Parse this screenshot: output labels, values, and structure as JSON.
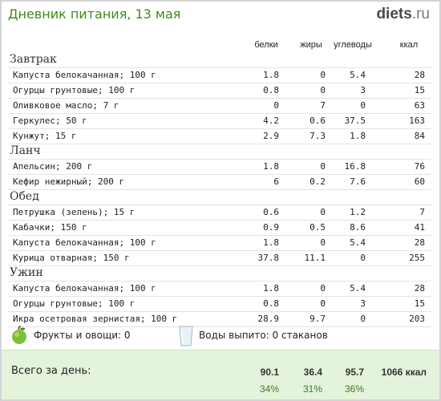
{
  "header": {
    "title": "Дневник питания, 13 мая",
    "logo_brand": "diets",
    "logo_tld": ".ru"
  },
  "columns": {
    "protein": "белки",
    "fat": "жиры",
    "carbs": "углеводы",
    "kcal": "ккал"
  },
  "sections": [
    {
      "title": "Завтрак",
      "rows": [
        {
          "name": "Капуста белокачанная; 100 г",
          "protein": "1.8",
          "fat": "0",
          "carbs": "5.4",
          "kcal": "28"
        },
        {
          "name": "Огурцы грунтовые; 100 г",
          "protein": "0.8",
          "fat": "0",
          "carbs": "3",
          "kcal": "15"
        },
        {
          "name": "Оливковое масло; 7 г",
          "protein": "0",
          "fat": "7",
          "carbs": "0",
          "kcal": "63"
        },
        {
          "name": "Геркулес; 50 г",
          "protein": "4.2",
          "fat": "0.6",
          "carbs": "37.5",
          "kcal": "163"
        },
        {
          "name": "Кунжут; 15 г",
          "protein": "2.9",
          "fat": "7.3",
          "carbs": "1.8",
          "kcal": "84"
        }
      ]
    },
    {
      "title": "Ланч",
      "rows": [
        {
          "name": "Апельсин; 200 г",
          "protein": "1.8",
          "fat": "0",
          "carbs": "16.8",
          "kcal": "76"
        },
        {
          "name": "Кефир нежирный; 200 г",
          "protein": "6",
          "fat": "0.2",
          "carbs": "7.6",
          "kcal": "60"
        }
      ]
    },
    {
      "title": "Обед",
      "rows": [
        {
          "name": "Петрушка (зелень); 15 г",
          "protein": "0.6",
          "fat": "0",
          "carbs": "1.2",
          "kcal": "7"
        },
        {
          "name": "Кабачки; 150 г",
          "protein": "0.9",
          "fat": "0.5",
          "carbs": "8.6",
          "kcal": "41"
        },
        {
          "name": "Капуста белокачанная; 100 г",
          "protein": "1.8",
          "fat": "0",
          "carbs": "5.4",
          "kcal": "28"
        },
        {
          "name": "Курица отварная; 150 г",
          "protein": "37.8",
          "fat": "11.1",
          "carbs": "0",
          "kcal": "255"
        }
      ]
    },
    {
      "title": "Ужин",
      "rows": [
        {
          "name": "Капуста белокачанная; 100 г",
          "protein": "1.8",
          "fat": "0",
          "carbs": "5.4",
          "kcal": "28"
        },
        {
          "name": "Огурцы грунтовые; 100 г",
          "protein": "0.8",
          "fat": "0",
          "carbs": "3",
          "kcal": "15"
        },
        {
          "name": "Икра осетровая зернистая; 100 г",
          "protein": "28.9",
          "fat": "9.7",
          "carbs": "0",
          "kcal": "203"
        }
      ]
    }
  ],
  "extras": {
    "fruit_label": "Фрукты и овощи: 0",
    "water_label": "Воды выпито: 0 стаканов",
    "fruit_icon": "apple-icon",
    "water_icon": "glass-icon"
  },
  "totals": {
    "label": "Всего за день:",
    "protein": "90.1",
    "fat": "36.4",
    "carbs": "95.7",
    "kcal": "1066 ккал",
    "protein_pct": "34%",
    "fat_pct": "31%",
    "carbs_pct": "36%"
  },
  "colors": {
    "title": "#3f8a1c",
    "footer_bg": "#e4f4dc",
    "pct": "#3f7a22"
  }
}
